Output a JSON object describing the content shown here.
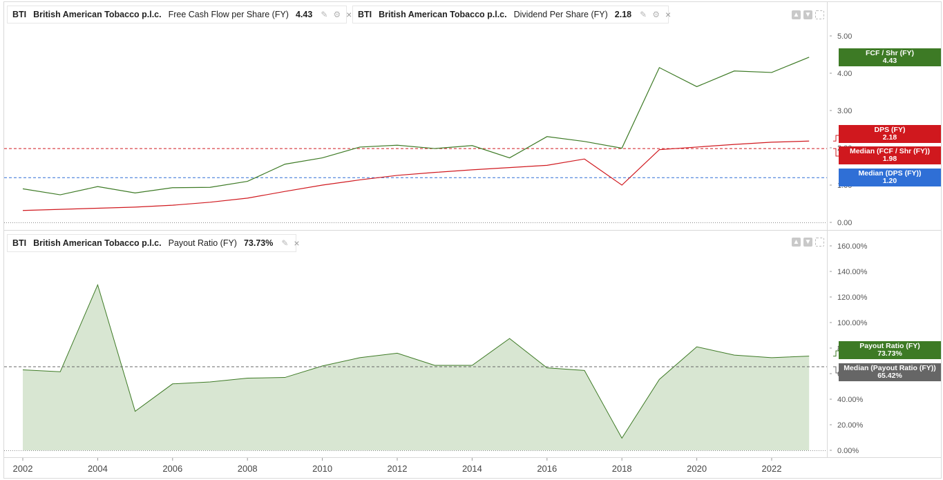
{
  "colors": {
    "fcf": "#3d7a25",
    "dps": "#d0181e",
    "median_dps": "#2f6fd6",
    "payout": "#3d7a25",
    "payout_fill": "#d8e6d2",
    "median_payout": "#666666"
  },
  "legends": {
    "fcf": {
      "ticker": "BTI",
      "company": "British American Tobacco p.l.c.",
      "metric": "Free Cash Flow per Share (FY)",
      "value": "4.43"
    },
    "dps": {
      "ticker": "BTI",
      "company": "British American Tobacco p.l.c.",
      "metric": "Dividend Per Share (FY)",
      "value": "2.18"
    },
    "payout": {
      "ticker": "BTI",
      "company": "British American Tobacco p.l.c.",
      "metric": "Payout Ratio (FY)",
      "value": "73.73%"
    }
  },
  "icons": {
    "tool": "bell-icon",
    "close": "close-icon",
    "up": "move-up-icon",
    "down": "move-down-icon",
    "full": "fullscreen-icon"
  },
  "flags": {
    "fcf": {
      "label": "FCF / Shr (FY)",
      "value": "4.43"
    },
    "dps": {
      "label": "DPS (FY)",
      "value": "2.18"
    },
    "median_fcf": {
      "label": "Median (FCF / Shr (FY))",
      "value": "1.98"
    },
    "median_dps": {
      "label": "Median (DPS (FY))",
      "value": "1.20"
    },
    "payout": {
      "label": "Payout Ratio (FY)",
      "value": "73.73%"
    },
    "median_payout": {
      "label": "Median (Payout Ratio (FY))",
      "value": "65.42%"
    }
  },
  "chart_data": [
    {
      "type": "line",
      "x": [
        2002,
        2003,
        2004,
        2005,
        2006,
        2007,
        2008,
        2009,
        2010,
        2011,
        2012,
        2013,
        2014,
        2015,
        2016,
        2017,
        2018,
        2019,
        2020,
        2021,
        2022,
        2023
      ],
      "series": [
        {
          "name": "Free Cash Flow per Share (FY)",
          "values": [
            0.9,
            0.74,
            0.96,
            0.79,
            0.93,
            0.94,
            1.1,
            1.56,
            1.73,
            2.02,
            2.07,
            1.98,
            2.06,
            1.73,
            2.3,
            2.17,
            1.99,
            4.15,
            3.64,
            4.06,
            4.02,
            4.43
          ]
        },
        {
          "name": "Dividend Per Share (FY)",
          "values": [
            0.32,
            0.35,
            0.38,
            0.41,
            0.46,
            0.54,
            0.65,
            0.83,
            1.0,
            1.14,
            1.26,
            1.34,
            1.41,
            1.47,
            1.53,
            1.7,
            1.0,
            1.95,
            2.02,
            2.09,
            2.15,
            2.18
          ]
        }
      ],
      "medians": [
        {
          "name": "Median (FCF / Shr (FY))",
          "value": 1.98
        },
        {
          "name": "Median (DPS (FY))",
          "value": 1.2
        }
      ],
      "yticks": [
        "0.00",
        "1.00",
        "2.00",
        "3.00",
        "4.00",
        "5.00"
      ],
      "ylim": [
        0,
        5.5
      ]
    },
    {
      "type": "area",
      "x": [
        2002,
        2003,
        2004,
        2005,
        2006,
        2007,
        2008,
        2009,
        2010,
        2011,
        2012,
        2013,
        2014,
        2015,
        2016,
        2017,
        2018,
        2019,
        2020,
        2021,
        2022,
        2023
      ],
      "series": [
        {
          "name": "Payout Ratio (FY)",
          "values": [
            63.0,
            61.5,
            129.5,
            30.5,
            52.0,
            53.5,
            56.5,
            57.0,
            66.0,
            72.5,
            76.0,
            66.5,
            66.5,
            87.5,
            64.5,
            62.5,
            9.5,
            55.5,
            81.0,
            74.5,
            72.5,
            73.73
          ]
        }
      ],
      "medians": [
        {
          "name": "Median (Payout Ratio (FY))",
          "value": 65.42
        }
      ],
      "yticks": [
        "0.00%",
        "20.00%",
        "40.00%",
        "60.00%",
        "80.00%",
        "100.00%",
        "120.00%",
        "140.00%",
        "160.00%"
      ],
      "ylim": [
        0,
        160
      ]
    }
  ],
  "xaxis": {
    "ticks": [
      "2002",
      "2004",
      "2006",
      "2008",
      "2010",
      "2012",
      "2014",
      "2016",
      "2018",
      "2020",
      "2022"
    ]
  }
}
